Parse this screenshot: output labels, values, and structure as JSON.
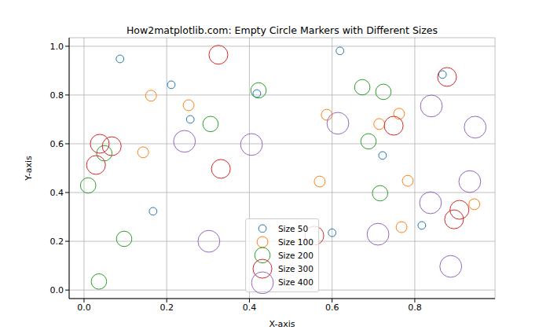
{
  "chart_data": {
    "type": "scatter",
    "title": "How2matplotlib.com: Empty Circle Markers with Different Sizes",
    "x_label": "X-axis",
    "y_label": "Y-axis",
    "xlim": [
      -0.036,
      0.994
    ],
    "ylim": [
      -0.035,
      1.035
    ],
    "xticks": [
      {
        "value": 0,
        "label": "0.0"
      },
      0.2,
      0.4,
      0.6,
      0.8
    ],
    "yticks": [
      {
        "value": 0,
        "label": "0.0"
      },
      0.2,
      0.4,
      0.6,
      0.8,
      {
        "value": 1,
        "label": "1.0"
      }
    ],
    "grid": true,
    "legend": "lower center",
    "marker": "open circle",
    "series": [
      {
        "name": "Size 50",
        "color": "#1f77b4",
        "size": 50,
        "x": [
          0.087,
          0.211,
          0.257,
          0.167,
          0.418,
          0.619,
          0.722,
          0.6,
          0.817,
          0.867
        ],
        "y": [
          0.948,
          0.842,
          0.7,
          0.323,
          0.806,
          0.981,
          0.552,
          0.235,
          0.265,
          0.884
        ]
      },
      {
        "name": "Size 100",
        "color": "#ff7f0e",
        "size": 100,
        "x": [
          0.162,
          0.253,
          0.143,
          0.587,
          0.57,
          0.714,
          0.762,
          0.783,
          0.768,
          0.944
        ],
        "y": [
          0.797,
          0.758,
          0.565,
          0.719,
          0.445,
          0.681,
          0.723,
          0.448,
          0.258,
          0.352
        ]
      },
      {
        "name": "Size 200",
        "color": "#2ca02c",
        "size": 200,
        "x": [
          0.01,
          0.049,
          0.097,
          0.036,
          0.306,
          0.422,
          0.673,
          0.688,
          0.724,
          0.716
        ],
        "y": [
          0.429,
          0.561,
          0.21,
          0.035,
          0.681,
          0.819,
          0.832,
          0.61,
          0.813,
          0.397
        ]
      },
      {
        "name": "Size 300",
        "color": "#d62728",
        "size": 300,
        "x": [
          0.038,
          0.067,
          0.029,
          0.325,
          0.331,
          0.557,
          0.749,
          0.878,
          0.908,
          0.895
        ],
        "y": [
          0.6,
          0.59,
          0.513,
          0.965,
          0.497,
          0.223,
          0.674,
          0.874,
          0.329,
          0.29
        ]
      },
      {
        "name": "Size 400",
        "color": "#9467bd",
        "size": 400,
        "x": [
          0.243,
          0.405,
          0.614,
          0.302,
          0.711,
          0.84,
          0.838,
          0.946,
          0.933,
          0.887
        ],
        "y": [
          0.61,
          0.597,
          0.684,
          0.2,
          0.229,
          0.755,
          0.358,
          0.668,
          0.445,
          0.097
        ]
      }
    ]
  }
}
